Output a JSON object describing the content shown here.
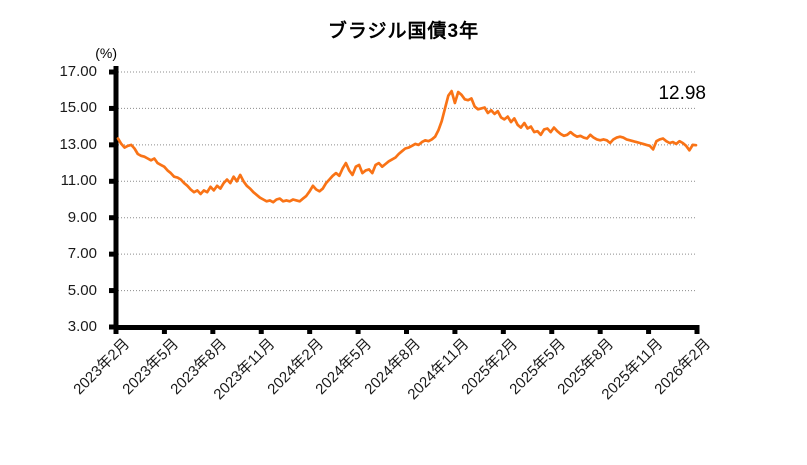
{
  "page": {
    "background": "#ffffff"
  },
  "chart_data": {
    "type": "line",
    "title": "ブラジル国債3年",
    "unit_label": "(%)",
    "last_value_label": "12.98",
    "ylim": [
      3,
      17
    ],
    "y_ticks": [
      "17.00",
      "15.00",
      "13.00",
      "11.00",
      "9.00",
      "7.00",
      "5.00",
      "3.00"
    ],
    "y_tick_values": [
      17,
      15,
      13,
      11,
      9,
      7,
      5,
      3
    ],
    "x_tick_labels": [
      "2023年2月",
      "2023年5月",
      "2023年8月",
      "2023年11月",
      "2024年2月",
      "2024年5月",
      "2024年8月",
      "2024年11月",
      "2025年2月",
      "2025年5月",
      "2025年8月",
      "2025年11月",
      "2026年2月"
    ],
    "x_range": [
      "2023年2月",
      "2026年2月"
    ],
    "grid": "horizontal-dotted",
    "legend": "none",
    "line_color": "#F97316",
    "axis_color": "#000000",
    "grid_color": "#8c8c8c",
    "series": [
      {
        "name": "ブラジル国債3年",
        "color": "#F97316",
        "values": [
          13.35,
          13.05,
          12.85,
          12.95,
          13.0,
          12.8,
          12.5,
          12.4,
          12.35,
          12.25,
          12.15,
          12.25,
          12.0,
          11.9,
          11.8,
          11.6,
          11.45,
          11.25,
          11.2,
          11.1,
          10.9,
          10.75,
          10.55,
          10.4,
          10.5,
          10.3,
          10.5,
          10.4,
          10.7,
          10.5,
          10.75,
          10.6,
          10.9,
          11.1,
          10.9,
          11.25,
          11.0,
          11.35,
          11.0,
          10.75,
          10.6,
          10.4,
          10.25,
          10.1,
          10.0,
          9.9,
          9.95,
          9.85,
          10.0,
          10.05,
          9.9,
          9.95,
          9.9,
          10.0,
          9.95,
          9.9,
          10.05,
          10.2,
          10.45,
          10.75,
          10.55,
          10.45,
          10.6,
          10.9,
          11.1,
          11.3,
          11.45,
          11.3,
          11.7,
          12.0,
          11.6,
          11.35,
          11.8,
          11.9,
          11.45,
          11.6,
          11.65,
          11.45,
          11.9,
          12.0,
          11.8,
          11.95,
          12.1,
          12.2,
          12.3,
          12.5,
          12.65,
          12.8,
          12.85,
          12.95,
          13.05,
          13.0,
          13.15,
          13.25,
          13.2,
          13.3,
          13.45,
          13.8,
          14.3,
          15.0,
          15.7,
          15.95,
          15.3,
          15.9,
          15.75,
          15.5,
          15.45,
          15.55,
          15.1,
          14.95,
          15.0,
          15.05,
          14.75,
          14.9,
          14.7,
          14.85,
          14.5,
          14.4,
          14.55,
          14.25,
          14.45,
          14.1,
          13.95,
          14.2,
          13.9,
          14.0,
          13.7,
          13.75,
          13.55,
          13.85,
          13.9,
          13.7,
          13.95,
          13.75,
          13.6,
          13.5,
          13.55,
          13.7,
          13.55,
          13.45,
          13.5,
          13.4,
          13.35,
          13.55,
          13.4,
          13.3,
          13.25,
          13.3,
          13.25,
          13.1,
          13.3,
          13.4,
          13.45,
          13.4,
          13.3,
          13.25,
          13.2,
          13.15,
          13.1,
          13.05,
          13.0,
          12.95,
          12.75,
          13.2,
          13.3,
          13.35,
          13.2,
          13.1,
          13.15,
          13.05,
          13.2,
          13.1,
          12.95,
          12.7,
          13.0,
          12.98
        ]
      }
    ]
  }
}
